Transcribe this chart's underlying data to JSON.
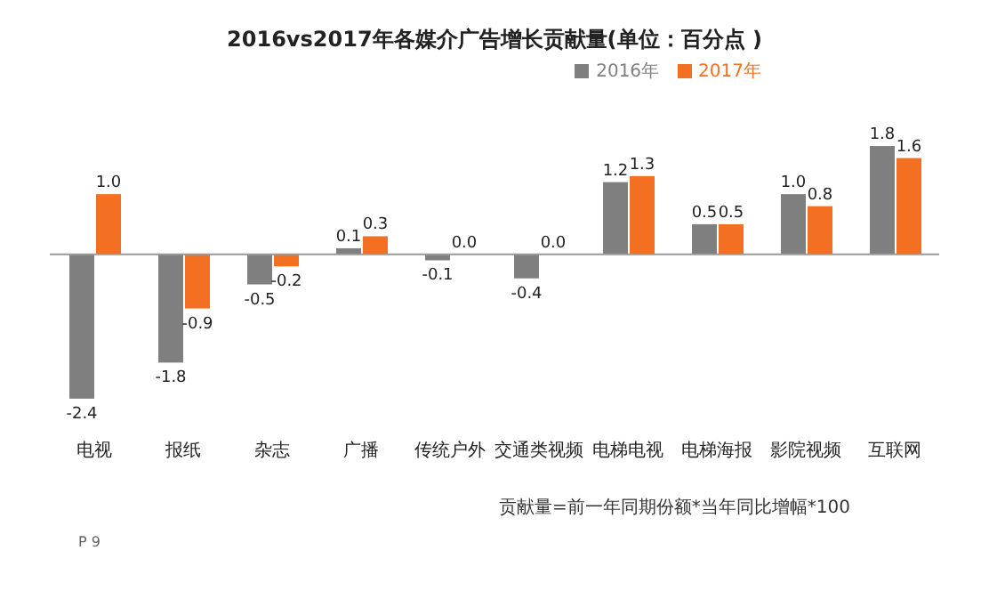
{
  "chart_data": {
    "type": "bar",
    "title": "2016vs2017年各媒介广告增长贡献量(单位：百分点 )",
    "categories": [
      "电视",
      "报纸",
      "杂志",
      "广播",
      "传统户外",
      "交通类视频",
      "电梯电视",
      "电梯海报",
      "影院视频",
      "互联网"
    ],
    "series": [
      {
        "name": "2016年",
        "color": "#7f7f7f",
        "values": [
          -2.4,
          -1.8,
          -0.5,
          0.1,
          -0.1,
          -0.4,
          1.2,
          0.5,
          1.0,
          1.8
        ],
        "value_labels": [
          "-2.4",
          "-1.8",
          "-0.5",
          "0.1",
          "-0.1",
          "-0.4",
          "1.2",
          "0.5",
          "1.0",
          "1.8"
        ]
      },
      {
        "name": "2017年",
        "color": "#f36f21",
        "values": [
          1.0,
          -0.9,
          -0.2,
          0.3,
          0.0,
          0.0,
          1.3,
          0.5,
          0.8,
          1.6
        ],
        "value_labels": [
          "1.0",
          "-0.9",
          "-0.2",
          "0.3",
          "0.0",
          "0.0",
          "1.3",
          "0.5",
          "0.8",
          "1.6"
        ]
      }
    ],
    "legend": "top right",
    "annotations": [
      "贡献量=前一年同期份额*当年同比增幅*100",
      "P 9"
    ]
  }
}
